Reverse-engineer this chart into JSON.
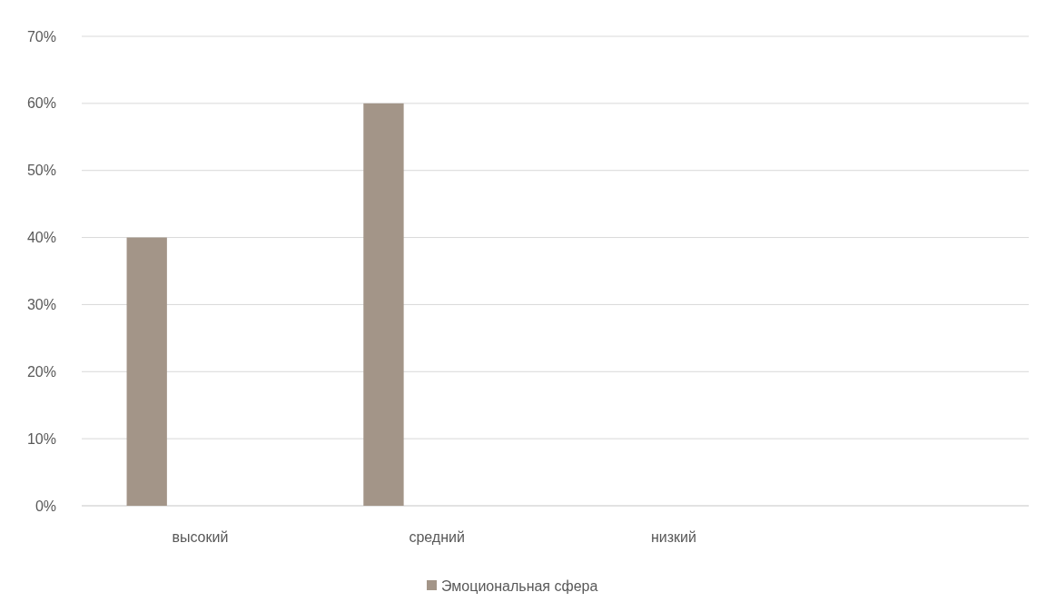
{
  "chart_data": {
    "type": "bar",
    "categories": [
      "высокий",
      "средний",
      "низкий",
      null
    ],
    "series": [
      {
        "name": "Эмоциональная сфера",
        "color": "#a39588",
        "values": [
          40,
          60,
          0,
          null
        ]
      }
    ],
    "ylim": [
      0,
      70
    ],
    "yticks": [
      {
        "value": 0,
        "label": "0%"
      },
      {
        "value": 10,
        "label": "10%"
      },
      {
        "value": 20,
        "label": "20%"
      },
      {
        "value": 30,
        "label": "30%"
      },
      {
        "value": 40,
        "label": "40%"
      },
      {
        "value": 50,
        "label": "50%"
      },
      {
        "value": 60,
        "label": "60%"
      },
      {
        "value": 70,
        "label": "70%"
      }
    ],
    "grid": "y",
    "legend": "bottom"
  }
}
